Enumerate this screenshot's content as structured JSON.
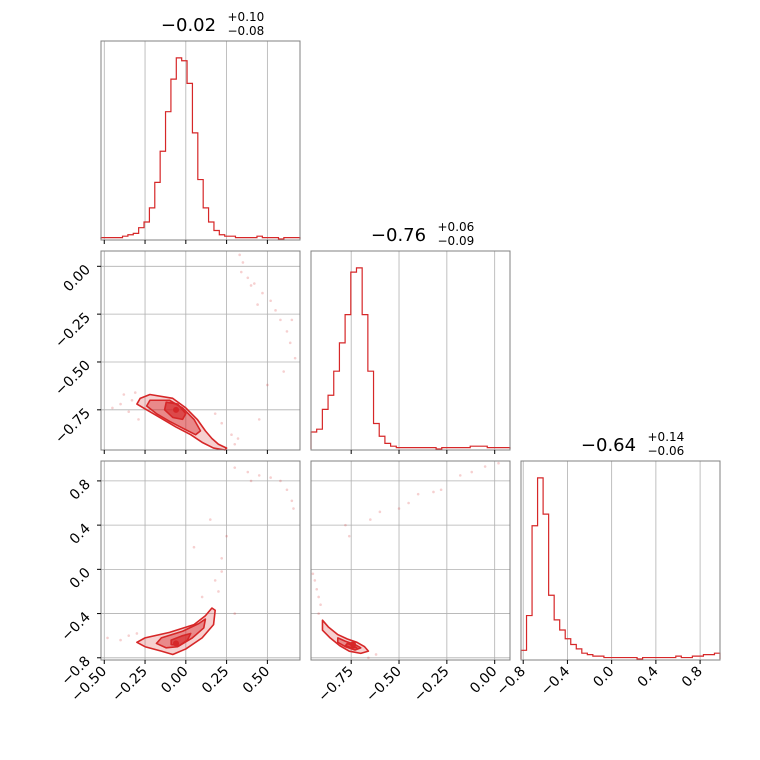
{
  "chart_data": {
    "type": "corner",
    "color": "#d62728",
    "parameters": [
      {
        "title": {
          "median": "−0.02",
          "upper": "+0.10",
          "lower": "−0.08"
        },
        "range": [
          -0.52,
          0.7
        ],
        "ticks": [
          {
            "value": -0.5,
            "label": "−0.50"
          },
          {
            "value": -0.25,
            "label": "−0.25"
          },
          {
            "value": 0.0,
            "label": "0.00"
          },
          {
            "value": 0.25,
            "label": "0.25"
          },
          {
            "value": 0.5,
            "label": "0.50"
          }
        ],
        "histogram": {
          "bins": [
            -0.52,
            0.7
          ],
          "counts": [
            1,
            1,
            1,
            1,
            2,
            3,
            4,
            8,
            12,
            22,
            40,
            62,
            90,
            113,
            128,
            126,
            110,
            75,
            42,
            22,
            12,
            6,
            3,
            2,
            2,
            1,
            1,
            1,
            1,
            2,
            1,
            1,
            1,
            0,
            1,
            1,
            1
          ]
        }
      },
      {
        "title": {
          "median": "−0.76",
          "upper": "+0.06",
          "lower": "−0.09"
        },
        "range": [
          -0.96,
          0.08
        ],
        "ticks": [
          {
            "value": -0.75,
            "label": "−0.75"
          },
          {
            "value": -0.5,
            "label": "−0.50"
          },
          {
            "value": -0.25,
            "label": "−0.25"
          },
          {
            "value": 0.0,
            "label": "0.00"
          }
        ],
        "histogram": {
          "bins": [
            -0.96,
            0.08
          ],
          "counts": [
            12,
            14,
            28,
            38,
            55,
            75,
            95,
            125,
            128,
            95,
            55,
            18,
            9,
            4,
            2,
            1,
            1,
            1,
            1,
            1,
            1,
            1,
            0,
            1,
            1,
            1,
            1,
            1,
            2,
            2,
            2,
            1,
            1,
            1,
            1
          ]
        }
      },
      {
        "title": {
          "median": "−0.64",
          "upper": "+0.14",
          "lower": "−0.06"
        },
        "range": [
          -0.82,
          0.98
        ],
        "ticks": [
          {
            "value": -0.8,
            "label": "−0.8"
          },
          {
            "value": -0.4,
            "label": "−0.4"
          },
          {
            "value": 0.0,
            "label": "0.0"
          },
          {
            "value": 0.4,
            "label": "0.4"
          },
          {
            "value": 0.8,
            "label": "0.8"
          }
        ],
        "histogram": {
          "bins": [
            -0.82,
            0.98
          ],
          "counts": [
            6,
            30,
            92,
            125,
            100,
            44,
            27,
            20,
            14,
            10,
            7,
            4,
            3,
            2,
            2,
            1,
            1,
            1,
            1,
            1,
            1,
            0,
            1,
            1,
            1,
            1,
            1,
            1,
            2,
            1,
            1,
            2,
            2,
            3,
            3,
            4
          ]
        }
      }
    ],
    "pairs": [
      {
        "x_param": 0,
        "y_param": 1,
        "center": [
          -0.06,
          -0.75
        ],
        "contours": [
          {
            "level": "outer",
            "points": [
              [
                -0.28,
                -0.69
              ],
              [
                -0.22,
                -0.67
              ],
              [
                -0.08,
                -0.69
              ],
              [
                0.0,
                -0.74
              ],
              [
                0.07,
                -0.8
              ],
              [
                0.12,
                -0.86
              ],
              [
                0.16,
                -0.9
              ],
              [
                0.2,
                -0.93
              ],
              [
                0.25,
                -0.95
              ],
              [
                0.24,
                -0.96
              ],
              [
                0.17,
                -0.95
              ],
              [
                0.1,
                -0.92
              ],
              [
                0.03,
                -0.88
              ],
              [
                -0.06,
                -0.84
              ],
              [
                -0.16,
                -0.79
              ],
              [
                -0.24,
                -0.75
              ],
              [
                -0.3,
                -0.72
              ]
            ]
          },
          {
            "level": "middle",
            "points": [
              [
                -0.22,
                -0.7
              ],
              [
                -0.1,
                -0.7
              ],
              [
                -0.02,
                -0.74
              ],
              [
                0.05,
                -0.8
              ],
              [
                0.09,
                -0.86
              ],
              [
                0.06,
                -0.88
              ],
              [
                -0.01,
                -0.85
              ],
              [
                -0.1,
                -0.81
              ],
              [
                -0.18,
                -0.77
              ],
              [
                -0.24,
                -0.73
              ]
            ]
          },
          {
            "level": "inner",
            "points": [
              [
                -0.12,
                -0.71
              ],
              [
                -0.05,
                -0.72
              ],
              [
                0.0,
                -0.77
              ],
              [
                -0.02,
                -0.8
              ],
              [
                -0.08,
                -0.79
              ],
              [
                -0.13,
                -0.75
              ]
            ]
          }
        ],
        "scatter": [
          [
            -0.4,
            -0.72
          ],
          [
            -0.38,
            -0.67
          ],
          [
            -0.33,
            -0.7
          ],
          [
            -0.35,
            -0.76
          ],
          [
            -0.31,
            -0.66
          ],
          [
            -0.29,
            -0.8
          ],
          [
            0.3,
            -0.93
          ],
          [
            0.32,
            -0.9
          ],
          [
            0.35,
            0.02
          ],
          [
            0.34,
            -0.03
          ],
          [
            0.38,
            -0.06
          ],
          [
            0.42,
            -0.09
          ],
          [
            0.47,
            -0.14
          ],
          [
            0.52,
            -0.18
          ],
          [
            0.55,
            -0.23
          ],
          [
            0.58,
            -0.28
          ],
          [
            0.62,
            -0.34
          ],
          [
            0.64,
            -0.4
          ],
          [
            0.67,
            -0.48
          ],
          [
            0.6,
            -0.55
          ],
          [
            0.5,
            -0.62
          ],
          [
            0.45,
            -0.8
          ],
          [
            0.4,
            -0.1
          ],
          [
            0.44,
            -0.2
          ],
          [
            0.33,
            0.06
          ],
          [
            -0.45,
            -0.74
          ],
          [
            0.28,
            -0.88
          ],
          [
            0.22,
            -0.82
          ],
          [
            0.18,
            -0.77
          ],
          [
            0.65,
            -0.28
          ]
        ]
      },
      {
        "x_param": 0,
        "y_param": 2,
        "center": [
          -0.06,
          -0.67
        ],
        "contours": [
          {
            "level": "outer",
            "points": [
              [
                -0.25,
                -0.62
              ],
              [
                -0.1,
                -0.57
              ],
              [
                0.05,
                -0.5
              ],
              [
                0.12,
                -0.42
              ],
              [
                0.16,
                -0.35
              ],
              [
                0.18,
                -0.37
              ],
              [
                0.17,
                -0.5
              ],
              [
                0.1,
                -0.62
              ],
              [
                0.0,
                -0.72
              ],
              [
                -0.08,
                -0.77
              ],
              [
                -0.15,
                -0.74
              ],
              [
                -0.25,
                -0.7
              ],
              [
                -0.3,
                -0.66
              ]
            ]
          },
          {
            "level": "middle",
            "points": [
              [
                -0.15,
                -0.62
              ],
              [
                -0.02,
                -0.56
              ],
              [
                0.08,
                -0.49
              ],
              [
                0.12,
                -0.45
              ],
              [
                0.11,
                -0.53
              ],
              [
                0.04,
                -0.62
              ],
              [
                -0.05,
                -0.7
              ],
              [
                -0.12,
                -0.71
              ],
              [
                -0.18,
                -0.67
              ]
            ]
          },
          {
            "level": "inner",
            "points": [
              [
                -0.09,
                -0.64
              ],
              [
                -0.02,
                -0.6
              ],
              [
                0.03,
                -0.58
              ],
              [
                0.01,
                -0.64
              ],
              [
                -0.04,
                -0.69
              ],
              [
                -0.09,
                -0.68
              ]
            ]
          }
        ],
        "scatter": [
          [
            -0.48,
            -0.62
          ],
          [
            -0.4,
            -0.64
          ],
          [
            -0.35,
            -0.6
          ],
          [
            -0.3,
            -0.58
          ],
          [
            0.2,
            -0.2
          ],
          [
            0.18,
            -0.1
          ],
          [
            0.22,
            -0.02
          ],
          [
            0.1,
            -0.25
          ],
          [
            0.25,
            0.3
          ],
          [
            0.15,
            0.45
          ],
          [
            0.3,
            0.92
          ],
          [
            0.38,
            0.88
          ],
          [
            0.45,
            0.85
          ],
          [
            0.52,
            0.83
          ],
          [
            0.58,
            0.8
          ],
          [
            0.62,
            0.72
          ],
          [
            0.65,
            0.62
          ],
          [
            0.66,
            0.55
          ],
          [
            0.4,
            0.8
          ],
          [
            0.05,
            0.2
          ],
          [
            0.22,
            0.1
          ],
          [
            0.3,
            -0.4
          ]
        ]
      },
      {
        "x_param": 1,
        "y_param": 2,
        "center": [
          -0.74,
          -0.68
        ],
        "contours": [
          {
            "level": "outer",
            "points": [
              [
                -0.9,
                -0.46
              ],
              [
                -0.87,
                -0.52
              ],
              [
                -0.82,
                -0.59
              ],
              [
                -0.77,
                -0.63
              ],
              [
                -0.72,
                -0.66
              ],
              [
                -0.68,
                -0.7
              ],
              [
                -0.66,
                -0.74
              ],
              [
                -0.7,
                -0.76
              ],
              [
                -0.76,
                -0.74
              ],
              [
                -0.81,
                -0.69
              ],
              [
                -0.86,
                -0.62
              ],
              [
                -0.9,
                -0.55
              ]
            ]
          },
          {
            "level": "middle",
            "points": [
              [
                -0.82,
                -0.62
              ],
              [
                -0.78,
                -0.65
              ],
              [
                -0.73,
                -0.68
              ],
              [
                -0.7,
                -0.71
              ],
              [
                -0.73,
                -0.73
              ],
              [
                -0.78,
                -0.7
              ],
              [
                -0.82,
                -0.66
              ]
            ]
          },
          {
            "level": "inner",
            "points": [
              [
                -0.77,
                -0.67
              ],
              [
                -0.74,
                -0.69
              ],
              [
                -0.72,
                -0.71
              ],
              [
                -0.75,
                -0.71
              ],
              [
                -0.78,
                -0.69
              ]
            ]
          }
        ],
        "scatter": [
          [
            -0.95,
            -0.04
          ],
          [
            -0.94,
            -0.1
          ],
          [
            -0.93,
            -0.18
          ],
          [
            -0.92,
            -0.25
          ],
          [
            -0.91,
            -0.32
          ],
          [
            -0.92,
            -0.4
          ],
          [
            -0.76,
            0.3
          ],
          [
            -0.78,
            0.4
          ],
          [
            -0.6,
            0.52
          ],
          [
            -0.5,
            0.55
          ],
          [
            -0.45,
            0.6
          ],
          [
            -0.32,
            0.7
          ],
          [
            -0.28,
            0.72
          ],
          [
            -0.18,
            0.85
          ],
          [
            -0.12,
            0.88
          ],
          [
            -0.05,
            0.93
          ],
          [
            0.02,
            0.96
          ],
          [
            -0.4,
            0.68
          ],
          [
            -0.66,
            -0.8
          ],
          [
            -0.62,
            -0.77
          ],
          [
            -0.65,
            0.45
          ]
        ]
      }
    ]
  }
}
